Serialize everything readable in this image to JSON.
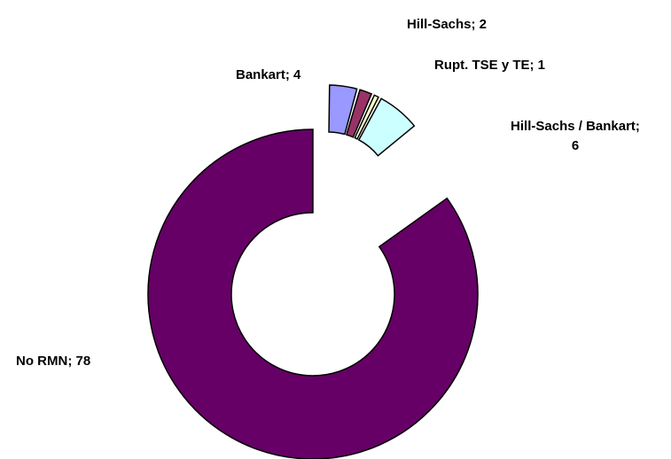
{
  "chart_data": {
    "type": "pie",
    "style": "exploded-doughnut",
    "slices": [
      {
        "name": "Bankart",
        "value": 4,
        "label": "Bankart; 4",
        "color": "#9999FF"
      },
      {
        "name": "Hill-Sachs",
        "value": 2,
        "label": "Hill-Sachs; 2",
        "color": "#993366"
      },
      {
        "name": "Rupt. TSE y TE",
        "value": 1,
        "label": "Rupt. TSE y TE; 1",
        "color": "#FFFFCC"
      },
      {
        "name": "Hill-Sachs / Bankart",
        "value": 6,
        "label_lines": [
          "Hill-Sachs / Bankart;",
          "6"
        ],
        "color": "#CCFFFF"
      },
      {
        "name": "No RMN",
        "value": 78,
        "label": "No RMN; 78",
        "color": "#660066"
      }
    ],
    "legend": "none"
  }
}
